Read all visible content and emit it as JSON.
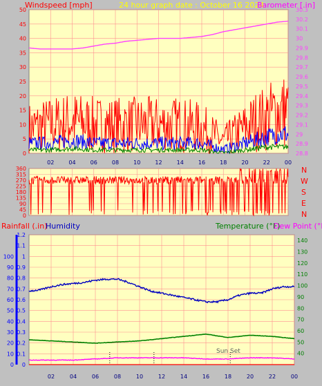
{
  "header": {
    "title": "24 hour graph date : October 16 2024",
    "left_label": "Windspeed [mph]",
    "right_label": "Barometer [.in]"
  },
  "bottom_labels": {
    "rainfall": "Rainfall (.in)",
    "humidity": "Humidity",
    "temperature": "Temperature (°F)",
    "dewpoint": "Dew Point (°F)"
  },
  "colors": {
    "background": "#c0c0c0",
    "plot_bg": "#ffffc0",
    "grid": "#ff9090",
    "wind": "#ff0000",
    "gust_blue": "#0000ff",
    "avg_green": "#008000",
    "barometer": "#ff40ff",
    "humidity": "#0000c0",
    "temperature": "#008000",
    "dewpoint": "#ff00ff",
    "title": "#ffff00",
    "rain_axis": "#ff0000",
    "humidity_axis": "#0000c0"
  },
  "chart_data": [
    {
      "type": "line",
      "title": "24 hour graph date : October 16 2024",
      "ylabel": "Windspeed [mph]",
      "ylim": [
        0,
        50
      ],
      "y_ticks": [
        "0",
        "5",
        "10",
        "15",
        "20",
        "25",
        "30",
        "35",
        "40",
        "45",
        "50"
      ],
      "y2label": "Barometer [.in]",
      "y2lim": [
        28.8,
        30.3
      ],
      "y2_ticks": [
        "28.8",
        "28.9",
        "29",
        "29.1",
        "29.2",
        "29.3",
        "29.4",
        "29.5",
        "29.6",
        "29.7",
        "29.8",
        "29.9",
        "30",
        "30.1",
        "30.2",
        "30.3"
      ],
      "x_ticks": [
        "02",
        "04",
        "06",
        "08",
        "10",
        "12",
        "14",
        "16",
        "18",
        "20",
        "22",
        "00"
      ],
      "series": [
        {
          "name": "Barometer [.in]",
          "hours": [
            0,
            1,
            2,
            3,
            4,
            5,
            6,
            7,
            8,
            9,
            10,
            11,
            12,
            13,
            14,
            15,
            16,
            17,
            18,
            19,
            20,
            21,
            22,
            23,
            24
          ],
          "values": [
            29.9,
            29.89,
            29.89,
            29.89,
            29.89,
            29.9,
            29.92,
            29.94,
            29.95,
            29.97,
            29.98,
            29.99,
            30.0,
            30.0,
            30.0,
            30.01,
            30.02,
            30.04,
            30.07,
            30.09,
            30.11,
            30.13,
            30.15,
            30.17,
            30.18
          ]
        },
        {
          "name": "Wind gust",
          "hours": [
            0,
            2,
            4,
            6,
            8,
            10,
            12,
            14,
            16,
            18,
            19,
            20,
            21,
            22,
            23,
            24
          ],
          "values": [
            7,
            8,
            9,
            8,
            8,
            8,
            8,
            8,
            7,
            3,
            5,
            7,
            9,
            10,
            12,
            12
          ]
        },
        {
          "name": "Wind speed",
          "hours": [
            0,
            2,
            4,
            6,
            8,
            10,
            12,
            14,
            16,
            18,
            19,
            20,
            21,
            22,
            23,
            24
          ],
          "values": [
            3,
            3,
            4,
            3,
            3,
            3,
            3,
            3,
            3,
            1,
            2,
            3,
            4,
            5,
            6,
            6
          ]
        },
        {
          "name": "Wind average",
          "hours": [
            0,
            2,
            4,
            6,
            8,
            10,
            12,
            14,
            16,
            18,
            19,
            20,
            21,
            22,
            23,
            24
          ],
          "values": [
            1,
            1,
            1.5,
            1,
            1,
            1,
            1,
            1,
            1,
            0,
            0.5,
            1,
            1.5,
            2,
            2,
            2
          ]
        }
      ]
    },
    {
      "type": "scatter",
      "ylim": [
        0,
        360
      ],
      "y_ticks": [
        "0",
        "45",
        "90",
        "135",
        "180",
        "225",
        "270",
        "315",
        "360"
      ],
      "compass_labels": [
        "N",
        "W",
        "S",
        "E",
        "N"
      ],
      "series": [
        {
          "name": "Wind direction",
          "dominant_degrees": 270,
          "range": [
            240,
            300
          ],
          "drops_to": 0
        }
      ]
    },
    {
      "type": "line",
      "ylabel": "Rainfall (.in)",
      "ylim": [
        0,
        1.2
      ],
      "y_ticks": [
        "0",
        "0.1",
        "0.2",
        "0.3",
        "0.4",
        "0.5",
        "0.6",
        "0.7",
        "0.8",
        "0.9",
        "1",
        "1.1",
        "1.2"
      ],
      "humidity_ticks": [
        "0",
        "10",
        "20",
        "30",
        "40",
        "50",
        "60",
        "70",
        "80",
        "90",
        "100"
      ],
      "y2label": "Temperature (°F)",
      "y2lim": [
        30,
        145
      ],
      "y2_ticks": [
        "40",
        "50",
        "60",
        "70",
        "80",
        "90",
        "100",
        "110",
        "120",
        "130",
        "140"
      ],
      "x_ticks": [
        "02",
        "04",
        "06",
        "08",
        "10",
        "12",
        "14",
        "16",
        "18",
        "20",
        "22",
        "00"
      ],
      "annotations": [
        "Sun Set"
      ],
      "series": [
        {
          "name": "Humidity",
          "hours": [
            0,
            1,
            2,
            3,
            4,
            5,
            6,
            7,
            8,
            9,
            10,
            11,
            12,
            13,
            14,
            15,
            16,
            17,
            18,
            19,
            20,
            21,
            22,
            23,
            24
          ],
          "values": [
            68,
            69,
            72,
            74,
            75,
            76,
            78,
            79,
            79,
            76,
            72,
            68,
            66,
            64,
            62,
            60,
            58,
            58,
            60,
            64,
            66,
            66,
            70,
            72,
            72
          ]
        },
        {
          "name": "Temperature (°F)",
          "hours": [
            0,
            2,
            4,
            6,
            8,
            10,
            12,
            14,
            16,
            18,
            20,
            22,
            24
          ],
          "values": [
            52,
            51,
            50,
            49,
            50,
            51,
            53,
            55,
            57,
            54,
            56,
            55,
            53
          ]
        },
        {
          "name": "Dew Point (°F)",
          "hours": [
            0,
            2,
            4,
            6,
            8,
            10,
            12,
            14,
            16,
            18,
            20,
            22,
            24
          ],
          "values": [
            34,
            34,
            34,
            35,
            36,
            36,
            36,
            36,
            35,
            35,
            36,
            36,
            35
          ]
        },
        {
          "name": "Rainfall (.in)",
          "hours": [
            0,
            24
          ],
          "values": [
            0,
            0
          ]
        }
      ]
    }
  ]
}
